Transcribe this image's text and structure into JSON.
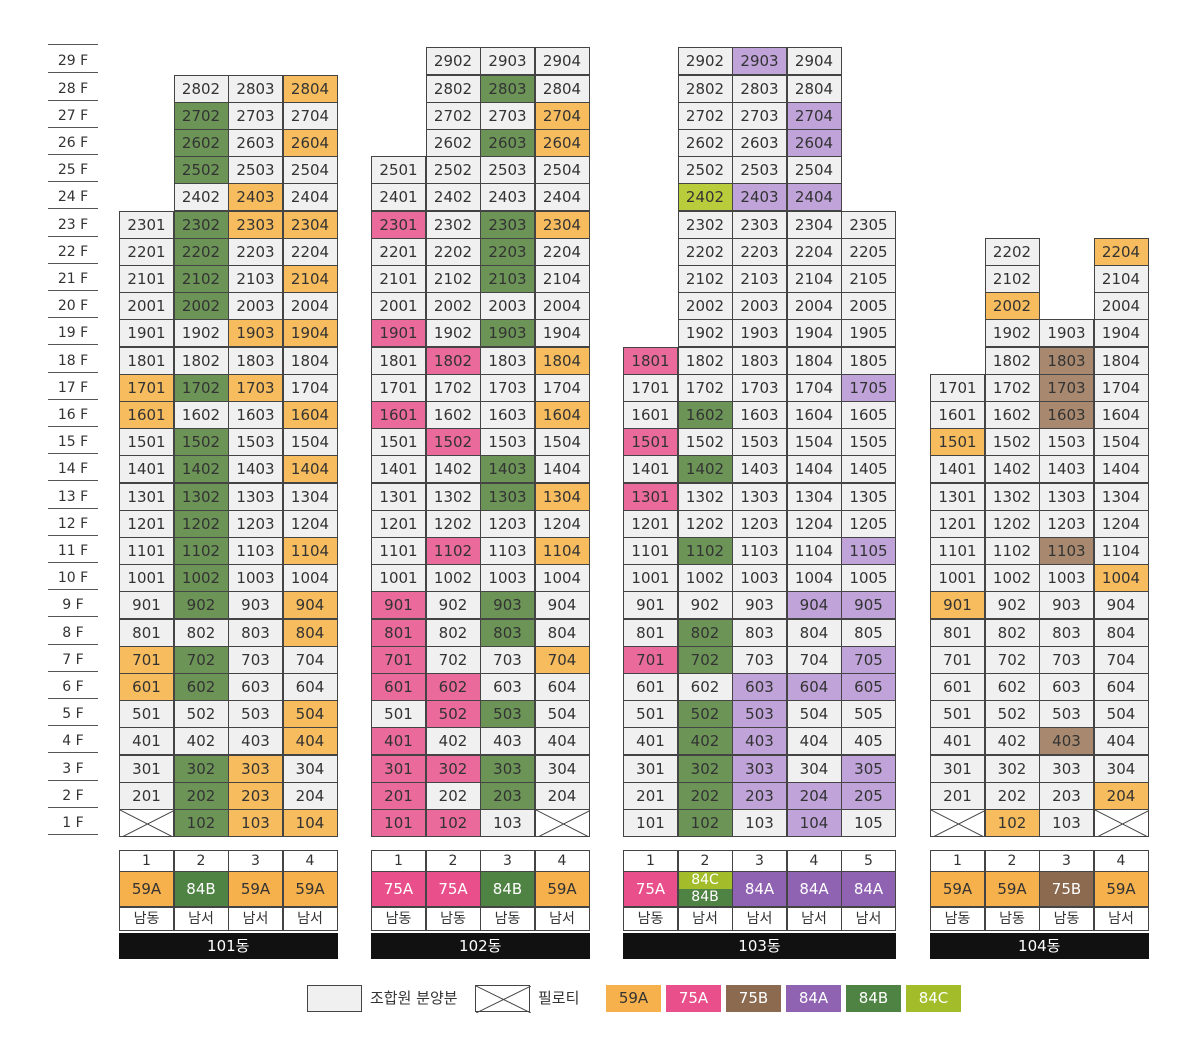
{
  "floors": [
    "29 F",
    "28 F",
    "27 F",
    "26 F",
    "25 F",
    "24 F",
    "23 F",
    "22 F",
    "21 F",
    "20 F",
    "19 F",
    "18 F",
    "17 F",
    "16 F",
    "15 F",
    "14 F",
    "13 F",
    "12 F",
    "11 F",
    "10 F",
    "9 F",
    "8 F",
    "7 F",
    "6 F",
    "5 F",
    "4 F",
    "3 F",
    "2 F",
    "1 F"
  ],
  "types": {
    "59A": {
      "color": "#f6b04c",
      "text": "#333333"
    },
    "75A": {
      "color": "#e9508b",
      "text": "#ffffff"
    },
    "75B": {
      "color": "#8b6a4f",
      "text": "#ffffff"
    },
    "84A": {
      "color": "#8f62b2",
      "text": "#ffffff"
    },
    "84B": {
      "color": "#4e8343",
      "text": "#ffffff"
    },
    "84C": {
      "color": "#a3bd2a",
      "text": "#ffffff"
    }
  },
  "cell_colors": {
    "59A": "#f6bc5e",
    "75A": "#ea6a9b",
    "75B": "#a8896f",
    "84A": "#bfa3d9",
    "84B": "#6c9457",
    "84C": "#b9cd3c",
    "default": "#f0f0f0"
  },
  "buildings": [
    {
      "name": "101동",
      "lines": [
        "1",
        "2",
        "3",
        "4"
      ],
      "line_types": [
        [
          "59A"
        ],
        [
          "84B"
        ],
        [
          "59A"
        ],
        [
          "59A"
        ]
      ],
      "directions": [
        "남동",
        "남서",
        "남서",
        "남서"
      ],
      "top_floors": [
        23,
        28,
        28,
        28
      ],
      "min_floor": 1,
      "pilotis": [
        [
          1,
          1
        ]
      ],
      "colored": {
        "59A": [
          "2804",
          "2604",
          "2403",
          "2303",
          "2304",
          "2104",
          "1903",
          "1904",
          "1701",
          "1703",
          "1601",
          "1604",
          "1404",
          "1104",
          "904",
          "804",
          "701",
          "601",
          "504",
          "404",
          "303",
          "203",
          "103",
          "104"
        ],
        "84B": [
          "2702",
          "2602",
          "2502",
          "2302",
          "2202",
          "2102",
          "2002",
          "1702",
          "1502",
          "1402",
          "1302",
          "1202",
          "1102",
          "1002",
          "902",
          "702",
          "602",
          "302",
          "202",
          "102"
        ]
      }
    },
    {
      "name": "102동",
      "lines": [
        "1",
        "2",
        "3",
        "4"
      ],
      "line_types": [
        [
          "75A"
        ],
        [
          "75A"
        ],
        [
          "84B"
        ],
        [
          "59A"
        ]
      ],
      "directions": [
        "남동",
        "남동",
        "남동",
        "남서"
      ],
      "top_floors": [
        25,
        29,
        29,
        29
      ],
      "min_floor": 1,
      "pilotis": [
        [
          1,
          4
        ]
      ],
      "colored": {
        "75A": [
          "2301",
          "1901",
          "1802",
          "1601",
          "1502",
          "1102",
          "901",
          "801",
          "701",
          "601",
          "602",
          "502",
          "401",
          "301",
          "302",
          "201",
          "101",
          "102"
        ],
        "84B": [
          "2803",
          "2603",
          "2303",
          "2203",
          "2103",
          "1903",
          "1403",
          "1303",
          "903",
          "803",
          "503",
          "303",
          "203"
        ],
        "59A": [
          "2704",
          "2604",
          "2304",
          "1804",
          "1604",
          "1304",
          "1104",
          "704"
        ]
      }
    },
    {
      "name": "103동",
      "lines": [
        "1",
        "2",
        "3",
        "4",
        "5"
      ],
      "line_types": [
        [
          "75A"
        ],
        [
          "84C",
          "84B"
        ],
        [
          "84A"
        ],
        [
          "84A"
        ],
        [
          "84A"
        ]
      ],
      "directions": [
        "남동",
        "남서",
        "남서",
        "남서",
        "남서"
      ],
      "top_floors": [
        18,
        29,
        29,
        29,
        23
      ],
      "min_floor": 1,
      "bottom_floors": [
        1,
        1,
        1,
        1,
        1
      ],
      "missing": [
        "1901"
      ],
      "pilotis": [],
      "colored": {
        "84A": [
          "2903",
          "2704",
          "2604",
          "2403",
          "2404",
          "1705",
          "1105",
          "904",
          "905",
          "705",
          "603",
          "604",
          "605",
          "503",
          "403",
          "303",
          "305",
          "203",
          "204",
          "205",
          "104"
        ],
        "84C": [
          "2402"
        ],
        "75A": [
          "1801",
          "1501",
          "1301",
          "701"
        ],
        "84B": [
          "1602",
          "1402",
          "1102",
          "802",
          "702",
          "502",
          "402",
          "302",
          "202",
          "102"
        ]
      }
    },
    {
      "name": "104동",
      "lines": [
        "1",
        "2",
        "3",
        "4"
      ],
      "line_types": [
        [
          "59A"
        ],
        [
          "59A"
        ],
        [
          "75B"
        ],
        [
          "59A"
        ]
      ],
      "directions": [
        "남동",
        "남동",
        "남동",
        "남서"
      ],
      "top_floors": [
        17,
        22,
        19,
        22
      ],
      "min_floor": 1,
      "missing": [
        "2203",
        "2103",
        "2003",
        "1801",
        "1901"
      ],
      "pilotis": [
        [
          1,
          1
        ],
        [
          1,
          4
        ]
      ],
      "colored": {
        "59A": [
          "2204",
          "2002",
          "1501",
          "1004",
          "901",
          "204",
          "102"
        ],
        "75B": [
          "1803",
          "1703",
          "1603",
          "1103",
          "403"
        ]
      }
    }
  ],
  "legend": {
    "member": "조합원 분양분",
    "piloti": "필로티",
    "types": [
      "59A",
      "75A",
      "75B",
      "84A",
      "84B",
      "84C"
    ]
  }
}
